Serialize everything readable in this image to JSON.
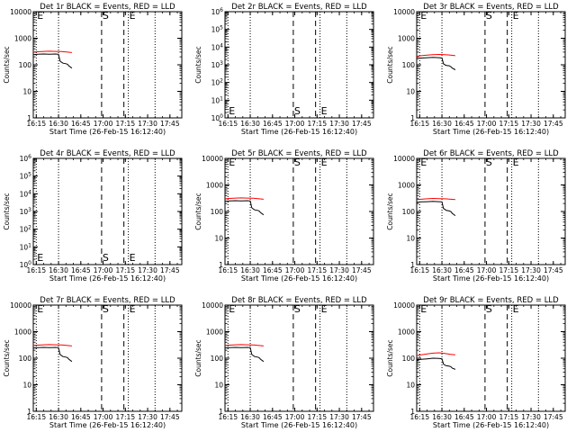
{
  "chart_data": [
    {
      "type": "line",
      "title": "Det 1r BLACK = Events, RED = LLD",
      "xlabel": "Start Time (26-Feb-15 16:12:40)",
      "ylabel": "Counts/sec",
      "xlim": [
        "16:13",
        "17:53"
      ],
      "x_ticks": [
        "16:15",
        "16:30",
        "16:45",
        "17:00",
        "17:15",
        "17:30",
        "17:45"
      ],
      "yscale": "log",
      "ylim": [
        1,
        10000
      ],
      "y_ticks": [
        "1",
        "10",
        "100",
        "1000",
        "10000"
      ],
      "markers": [
        {
          "label": "E",
          "time": "16:15",
          "style": "dotted"
        },
        {
          "label": "",
          "time": "16:30",
          "style": "dotted"
        },
        {
          "label": "S",
          "time": "16:59",
          "style": "dashed"
        },
        {
          "label": "",
          "time": "17:14",
          "style": "dashed"
        },
        {
          "label": "E",
          "time": "17:17",
          "style": "dotted"
        },
        {
          "label": "",
          "time": "17:35",
          "style": "dotted"
        }
      ],
      "series": [
        {
          "color": "#ff0000",
          "x": [
            "16:13",
            "16:16",
            "16:20",
            "16:24",
            "16:28",
            "16:32",
            "16:36",
            "16:39"
          ],
          "y": [
            300,
            310,
            320,
            325,
            320,
            315,
            300,
            290
          ]
        },
        {
          "color": "#000000",
          "x": [
            "16:13",
            "16:16",
            "16:20",
            "16:24",
            "16:28",
            "16:30",
            "16:31",
            "16:32",
            "16:33",
            "16:35",
            "16:36",
            "16:37",
            "16:39"
          ],
          "y": [
            240,
            250,
            255,
            250,
            255,
            250,
            140,
            125,
            115,
            110,
            105,
            90,
            75
          ]
        }
      ]
    },
    {
      "type": "line",
      "title": "Det 2r BLACK = Events, RED = LLD",
      "xlabel": "Start Time (26-Feb-15 16:12:40)",
      "ylabel": "Counts/sec",
      "xlim": [
        "16:13",
        "17:53"
      ],
      "x_ticks": [
        "16:15",
        "16:30",
        "16:45",
        "17:00",
        "17:15",
        "17:30",
        "17:45"
      ],
      "yscale": "log",
      "ylim": [
        1,
        1000000
      ],
      "y_ticks": [
        "10^0",
        "10^1",
        "10^2",
        "10^3",
        "10^4",
        "10^5",
        "10^6"
      ],
      "markers": [
        {
          "label": "E",
          "time": "16:15",
          "style": "dotted"
        },
        {
          "label": "",
          "time": "16:30",
          "style": "dotted"
        },
        {
          "label": "S",
          "time": "16:59",
          "style": "dashed"
        },
        {
          "label": "",
          "time": "17:14",
          "style": "dashed"
        },
        {
          "label": "E",
          "time": "17:17",
          "style": "dotted"
        },
        {
          "label": "",
          "time": "17:35",
          "style": "dotted"
        }
      ],
      "series": []
    },
    {
      "type": "line",
      "title": "Det 3r BLACK = Events, RED = LLD",
      "xlabel": "Start Time (26-Feb-15 16:12:40)",
      "ylabel": "Counts/sec",
      "xlim": [
        "16:13",
        "17:53"
      ],
      "x_ticks": [
        "16:15",
        "16:30",
        "16:45",
        "17:00",
        "17:15",
        "17:30",
        "17:45"
      ],
      "yscale": "log",
      "ylim": [
        1,
        10000
      ],
      "y_ticks": [
        "1",
        "10",
        "100",
        "1000",
        "10000"
      ],
      "markers": [
        {
          "label": "E",
          "time": "16:15",
          "style": "dotted"
        },
        {
          "label": "",
          "time": "16:30",
          "style": "dotted"
        },
        {
          "label": "S",
          "time": "16:59",
          "style": "dashed"
        },
        {
          "label": "",
          "time": "17:14",
          "style": "dashed"
        },
        {
          "label": "E",
          "time": "17:17",
          "style": "dotted"
        },
        {
          "label": "",
          "time": "17:35",
          "style": "dotted"
        }
      ],
      "series": [
        {
          "color": "#ff0000",
          "x": [
            "16:13",
            "16:16",
            "16:20",
            "16:24",
            "16:28",
            "16:32",
            "16:36",
            "16:39"
          ],
          "y": [
            210,
            220,
            230,
            240,
            245,
            240,
            230,
            220
          ]
        },
        {
          "color": "#000000",
          "x": [
            "16:13",
            "16:16",
            "16:20",
            "16:24",
            "16:28",
            "16:30",
            "16:31",
            "16:32",
            "16:33",
            "16:35",
            "16:36",
            "16:37",
            "16:39"
          ],
          "y": [
            170,
            180,
            185,
            190,
            185,
            180,
            110,
            100,
            95,
            92,
            85,
            75,
            65
          ]
        }
      ]
    },
    {
      "type": "line",
      "title": "Det 4r BLACK = Events, RED = LLD",
      "xlabel": "Start Time (26-Feb-15 16:12:40)",
      "ylabel": "Counts/sec",
      "xlim": [
        "16:13",
        "17:53"
      ],
      "x_ticks": [
        "16:15",
        "16:30",
        "16:45",
        "17:00",
        "17:15",
        "17:30",
        "17:45"
      ],
      "yscale": "log",
      "ylim": [
        1,
        1000000
      ],
      "y_ticks": [
        "10^0",
        "10^1",
        "10^2",
        "10^3",
        "10^4",
        "10^5",
        "10^6"
      ],
      "markers": [
        {
          "label": "E",
          "time": "16:15",
          "style": "dotted"
        },
        {
          "label": "",
          "time": "16:30",
          "style": "dotted"
        },
        {
          "label": "S",
          "time": "16:59",
          "style": "dashed"
        },
        {
          "label": "",
          "time": "17:14",
          "style": "dashed"
        },
        {
          "label": "E",
          "time": "17:17",
          "style": "dotted"
        },
        {
          "label": "",
          "time": "17:35",
          "style": "dotted"
        }
      ],
      "series": []
    },
    {
      "type": "line",
      "title": "Det 5r BLACK = Events, RED = LLD",
      "xlabel": "Start Time (26-Feb-15 16:12:40)",
      "ylabel": "Counts/sec",
      "xlim": [
        "16:13",
        "17:53"
      ],
      "x_ticks": [
        "16:15",
        "16:30",
        "16:45",
        "17:00",
        "17:15",
        "17:30",
        "17:45"
      ],
      "yscale": "log",
      "ylim": [
        1,
        10000
      ],
      "y_ticks": [
        "1",
        "10",
        "100",
        "1000",
        "10000"
      ],
      "markers": [
        {
          "label": "E",
          "time": "16:15",
          "style": "dotted"
        },
        {
          "label": "",
          "time": "16:30",
          "style": "dotted"
        },
        {
          "label": "S",
          "time": "16:59",
          "style": "dashed"
        },
        {
          "label": "",
          "time": "17:14",
          "style": "dashed"
        },
        {
          "label": "E",
          "time": "17:17",
          "style": "dotted"
        },
        {
          "label": "",
          "time": "17:35",
          "style": "dotted"
        }
      ],
      "series": [
        {
          "color": "#ff0000",
          "x": [
            "16:13",
            "16:16",
            "16:20",
            "16:24",
            "16:28",
            "16:32",
            "16:36",
            "16:39"
          ],
          "y": [
            300,
            310,
            320,
            325,
            320,
            315,
            300,
            290
          ]
        },
        {
          "color": "#000000",
          "x": [
            "16:13",
            "16:16",
            "16:20",
            "16:24",
            "16:28",
            "16:30",
            "16:31",
            "16:32",
            "16:33",
            "16:35",
            "16:36",
            "16:37",
            "16:39"
          ],
          "y": [
            240,
            250,
            255,
            250,
            255,
            250,
            140,
            125,
            115,
            110,
            105,
            90,
            75
          ]
        }
      ]
    },
    {
      "type": "line",
      "title": "Det 6r BLACK = Events, RED = LLD",
      "xlabel": "Start Time (26-Feb-15 16:12:40)",
      "ylabel": "Counts/sec",
      "xlim": [
        "16:13",
        "17:53"
      ],
      "x_ticks": [
        "16:15",
        "16:30",
        "16:45",
        "17:00",
        "17:15",
        "17:30",
        "17:45"
      ],
      "yscale": "log",
      "ylim": [
        1,
        10000
      ],
      "y_ticks": [
        "1",
        "10",
        "100",
        "1000",
        "10000"
      ],
      "markers": [
        {
          "label": "E",
          "time": "16:15",
          "style": "dotted"
        },
        {
          "label": "",
          "time": "16:30",
          "style": "dotted"
        },
        {
          "label": "S",
          "time": "16:59",
          "style": "dashed"
        },
        {
          "label": "",
          "time": "17:14",
          "style": "dashed"
        },
        {
          "label": "E",
          "time": "17:17",
          "style": "dotted"
        },
        {
          "label": "",
          "time": "17:35",
          "style": "dotted"
        }
      ],
      "series": [
        {
          "color": "#ff0000",
          "x": [
            "16:13",
            "16:16",
            "16:20",
            "16:24",
            "16:28",
            "16:32",
            "16:36",
            "16:39"
          ],
          "y": [
            280,
            290,
            300,
            310,
            305,
            300,
            290,
            280
          ]
        },
        {
          "color": "#000000",
          "x": [
            "16:13",
            "16:16",
            "16:20",
            "16:24",
            "16:28",
            "16:30",
            "16:31",
            "16:32",
            "16:33",
            "16:35",
            "16:36",
            "16:37",
            "16:39"
          ],
          "y": [
            220,
            230,
            235,
            240,
            235,
            230,
            130,
            120,
            110,
            105,
            100,
            85,
            70
          ]
        }
      ]
    },
    {
      "type": "line",
      "title": "Det 7r BLACK = Events, RED = LLD",
      "xlabel": "Start Time (26-Feb-15 16:12:40)",
      "ylabel": "Counts/sec",
      "xlim": [
        "16:13",
        "17:53"
      ],
      "x_ticks": [
        "16:15",
        "16:30",
        "16:45",
        "17:00",
        "17:15",
        "17:30",
        "17:45"
      ],
      "yscale": "log",
      "ylim": [
        1,
        10000
      ],
      "y_ticks": [
        "1",
        "10",
        "100",
        "1000",
        "10000"
      ],
      "markers": [
        {
          "label": "E",
          "time": "16:15",
          "style": "dotted"
        },
        {
          "label": "",
          "time": "16:30",
          "style": "dotted"
        },
        {
          "label": "S",
          "time": "16:59",
          "style": "dashed"
        },
        {
          "label": "",
          "time": "17:14",
          "style": "dashed"
        },
        {
          "label": "E",
          "time": "17:17",
          "style": "dotted"
        },
        {
          "label": "",
          "time": "17:35",
          "style": "dotted"
        }
      ],
      "series": [
        {
          "color": "#ff0000",
          "x": [
            "16:13",
            "16:16",
            "16:20",
            "16:24",
            "16:28",
            "16:32",
            "16:36",
            "16:39"
          ],
          "y": [
            300,
            310,
            320,
            325,
            320,
            315,
            300,
            290
          ]
        },
        {
          "color": "#000000",
          "x": [
            "16:13",
            "16:16",
            "16:20",
            "16:24",
            "16:28",
            "16:30",
            "16:31",
            "16:32",
            "16:33",
            "16:35",
            "16:36",
            "16:37",
            "16:39"
          ],
          "y": [
            240,
            250,
            255,
            250,
            255,
            250,
            140,
            125,
            115,
            110,
            105,
            90,
            75
          ]
        }
      ]
    },
    {
      "type": "line",
      "title": "Det 8r BLACK = Events, RED = LLD",
      "xlabel": "Start Time (26-Feb-15 16:12:40)",
      "ylabel": "Counts/sec",
      "xlim": [
        "16:13",
        "17:53"
      ],
      "x_ticks": [
        "16:15",
        "16:30",
        "16:45",
        "17:00",
        "17:15",
        "17:30",
        "17:45"
      ],
      "yscale": "log",
      "ylim": [
        1,
        10000
      ],
      "y_ticks": [
        "1",
        "10",
        "100",
        "1000",
        "10000"
      ],
      "markers": [
        {
          "label": "E",
          "time": "16:15",
          "style": "dotted"
        },
        {
          "label": "",
          "time": "16:30",
          "style": "dotted"
        },
        {
          "label": "S",
          "time": "16:59",
          "style": "dashed"
        },
        {
          "label": "",
          "time": "17:14",
          "style": "dashed"
        },
        {
          "label": "E",
          "time": "17:17",
          "style": "dotted"
        },
        {
          "label": "",
          "time": "17:35",
          "style": "dotted"
        }
      ],
      "series": [
        {
          "color": "#ff0000",
          "x": [
            "16:13",
            "16:16",
            "16:20",
            "16:24",
            "16:28",
            "16:32",
            "16:36",
            "16:39"
          ],
          "y": [
            300,
            310,
            320,
            325,
            320,
            315,
            300,
            290
          ]
        },
        {
          "color": "#000000",
          "x": [
            "16:13",
            "16:16",
            "16:20",
            "16:24",
            "16:28",
            "16:30",
            "16:31",
            "16:32",
            "16:33",
            "16:35",
            "16:36",
            "16:37",
            "16:39"
          ],
          "y": [
            240,
            250,
            255,
            250,
            255,
            250,
            140,
            125,
            115,
            110,
            105,
            90,
            75
          ]
        }
      ]
    },
    {
      "type": "line",
      "title": "Det 9r BLACK = Events, RED = LLD",
      "xlabel": "Start Time (26-Feb-15 16:12:40)",
      "ylabel": "Counts/sec",
      "xlim": [
        "16:13",
        "17:53"
      ],
      "x_ticks": [
        "16:15",
        "16:30",
        "16:45",
        "17:00",
        "17:15",
        "17:30",
        "17:45"
      ],
      "yscale": "log",
      "ylim": [
        1,
        10000
      ],
      "y_ticks": [
        "1",
        "10",
        "100",
        "1000",
        "10000"
      ],
      "markers": [
        {
          "label": "E",
          "time": "16:15",
          "style": "dotted"
        },
        {
          "label": "",
          "time": "16:30",
          "style": "dotted"
        },
        {
          "label": "S",
          "time": "16:59",
          "style": "dashed"
        },
        {
          "label": "",
          "time": "17:14",
          "style": "dashed"
        },
        {
          "label": "E",
          "time": "17:17",
          "style": "dotted"
        },
        {
          "label": "",
          "time": "17:35",
          "style": "dotted"
        }
      ],
      "series": [
        {
          "color": "#ff0000",
          "x": [
            "16:13",
            "16:16",
            "16:20",
            "16:24",
            "16:28",
            "16:32",
            "16:36",
            "16:39"
          ],
          "y": [
            125,
            135,
            145,
            155,
            160,
            150,
            140,
            135
          ]
        },
        {
          "color": "#000000",
          "x": [
            "16:13",
            "16:16",
            "16:20",
            "16:24",
            "16:28",
            "16:30",
            "16:31",
            "16:32",
            "16:33",
            "16:35",
            "16:36",
            "16:37",
            "16:39"
          ],
          "y": [
            85,
            90,
            95,
            100,
            98,
            95,
            60,
            55,
            52,
            50,
            48,
            42,
            38
          ]
        }
      ]
    }
  ]
}
